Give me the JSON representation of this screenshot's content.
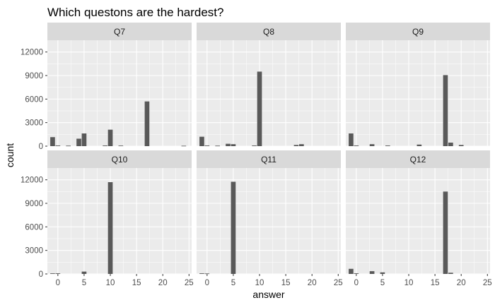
{
  "chart_data": {
    "type": "bar",
    "title": "Which questons are the hardest?",
    "xlabel": "answer",
    "ylabel": "count",
    "xlim": [
      -2,
      25.5
    ],
    "ylim": [
      0,
      13500
    ],
    "x_ticks": [
      0,
      5,
      10,
      15,
      20,
      25
    ],
    "y_ticks": [
      0,
      3000,
      6000,
      9000,
      12000
    ],
    "bin_width": 0.9,
    "bar_color": "#595959",
    "panel_background": "#ebebeb",
    "strip_background": "#d9d9d9",
    "grid": true,
    "facets": [
      {
        "label": "Q7",
        "bars": [
          {
            "x": -1,
            "y": 1150
          },
          {
            "x": 0,
            "y": 80
          },
          {
            "x": 2,
            "y": 60
          },
          {
            "x": 4,
            "y": 950
          },
          {
            "x": 5,
            "y": 1620
          },
          {
            "x": 9,
            "y": 80
          },
          {
            "x": 10,
            "y": 2100
          },
          {
            "x": 12,
            "y": 70
          },
          {
            "x": 17,
            "y": 5700
          },
          {
            "x": 24,
            "y": 50
          }
        ]
      },
      {
        "label": "Q8",
        "bars": [
          {
            "x": -1,
            "y": 1200
          },
          {
            "x": 0,
            "y": 80
          },
          {
            "x": 2,
            "y": 60
          },
          {
            "x": 4,
            "y": 300
          },
          {
            "x": 5,
            "y": 250
          },
          {
            "x": 9,
            "y": 80
          },
          {
            "x": 10,
            "y": 9500
          },
          {
            "x": 17,
            "y": 150
          },
          {
            "x": 18,
            "y": 250
          }
        ]
      },
      {
        "label": "Q9",
        "bars": [
          {
            "x": -1,
            "y": 1620
          },
          {
            "x": 0,
            "y": 80
          },
          {
            "x": 3,
            "y": 250
          },
          {
            "x": 6,
            "y": 80
          },
          {
            "x": 12,
            "y": 200
          },
          {
            "x": 17,
            "y": 9050
          },
          {
            "x": 18,
            "y": 450
          },
          {
            "x": 20,
            "y": 150
          }
        ]
      },
      {
        "label": "Q10",
        "bars": [
          {
            "x": -1,
            "y": 80
          },
          {
            "x": 0,
            "y": 80
          },
          {
            "x": 5,
            "y": 300
          },
          {
            "x": 10,
            "y": 11700
          }
        ]
      },
      {
        "label": "Q11",
        "bars": [
          {
            "x": -1,
            "y": 80
          },
          {
            "x": 0,
            "y": 60
          },
          {
            "x": 5,
            "y": 11750
          }
        ]
      },
      {
        "label": "Q12",
        "bars": [
          {
            "x": -1,
            "y": 650
          },
          {
            "x": 0,
            "y": 80
          },
          {
            "x": 3,
            "y": 350
          },
          {
            "x": 5,
            "y": 200
          },
          {
            "x": 17,
            "y": 10500
          },
          {
            "x": 18,
            "y": 150
          }
        ]
      }
    ]
  }
}
